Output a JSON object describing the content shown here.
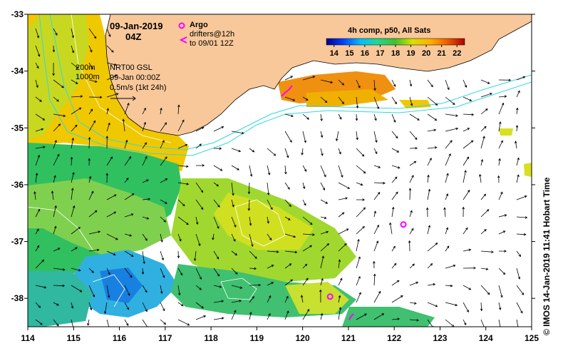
{
  "header": {
    "date": "09-Jan-2019",
    "time": "04Z",
    "argo_label": "Argo",
    "drifters_line1": "drifters@12h",
    "drifters_line2": "to 09/01 12Z",
    "composite_title": "4h comp, p50, All Sats"
  },
  "info": {
    "contour1": "200m",
    "contour2": "1000m",
    "product": "NRT00 GSL",
    "valid": "09-Jan 00:00Z",
    "scale": "0.5m/s (1kt 24h)"
  },
  "colorbar": {
    "ticks": [
      "14",
      "15",
      "16",
      "17",
      "18",
      "19",
      "20",
      "21",
      "22"
    ],
    "min": 13.5,
    "max": 22.5
  },
  "axes": {
    "x_ticks": [
      "114",
      "115",
      "116",
      "117",
      "118",
      "119",
      "120",
      "121",
      "122",
      "123",
      "124",
      "125"
    ],
    "y_ticks": [
      "-33",
      "-34",
      "-35",
      "-36",
      "-37",
      "-38"
    ],
    "x_range": [
      114,
      125
    ],
    "y_range": [
      -38.5,
      -33
    ]
  },
  "credit": "© IMOS 14-Jan-2019 11:41 Hobart Time",
  "colors": {
    "land": "#f8c89a",
    "argo": "#ff00ff",
    "contour": "#30d8e0"
  },
  "argo_floats": [
    {
      "lon": 122.2,
      "lat": -36.7
    },
    {
      "lon": 120.6,
      "lat": -37.97
    }
  ]
}
